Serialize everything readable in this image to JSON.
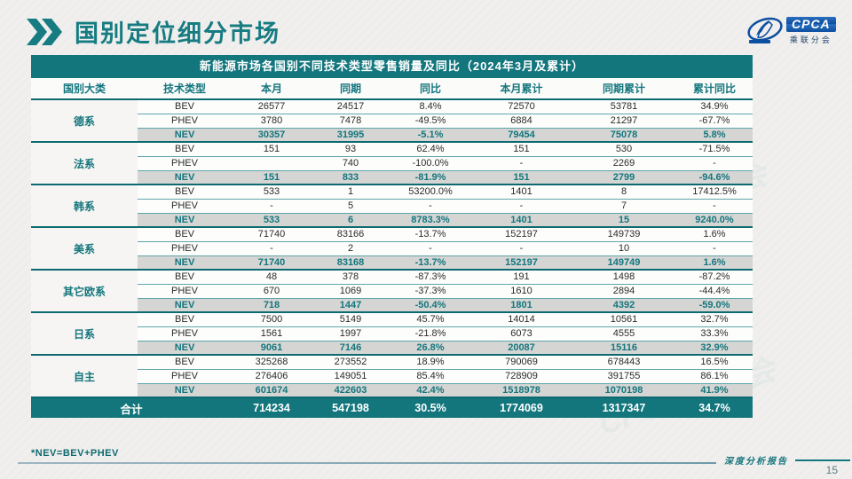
{
  "page": {
    "title": "国别定位细分市场",
    "page_number": "15",
    "footnote": "*NEV=BEV+PHEV",
    "footer_label": "深度分析报告"
  },
  "logo": {
    "name": "CPCA",
    "org": "乘联分会"
  },
  "watermark_text": "CPCA 乘联会",
  "table": {
    "caption": "新能源市场各国别不同技术类型零售销量及同比（2024年3月及累计）",
    "columns": [
      "国别大类",
      "技术类型",
      "本月",
      "同期",
      "同比",
      "本月累计",
      "同期累计",
      "累计同比"
    ],
    "groups": [
      {
        "name": "德系",
        "rows": [
          {
            "type": "BEV",
            "values": [
              "26577",
              "24517",
              "8.4%",
              "72570",
              "53781",
              "34.9%"
            ]
          },
          {
            "type": "PHEV",
            "values": [
              "3780",
              "7478",
              "-49.5%",
              "6884",
              "21297",
              "-67.7%"
            ]
          },
          {
            "type": "NEV",
            "values": [
              "30357",
              "31995",
              "-5.1%",
              "79454",
              "75078",
              "5.8%"
            ]
          }
        ]
      },
      {
        "name": "法系",
        "rows": [
          {
            "type": "BEV",
            "values": [
              "151",
              "93",
              "62.4%",
              "151",
              "530",
              "-71.5%"
            ]
          },
          {
            "type": "PHEV",
            "values": [
              "",
              "740",
              "-100.0%",
              "-",
              "2269",
              "-"
            ]
          },
          {
            "type": "NEV",
            "values": [
              "151",
              "833",
              "-81.9%",
              "151",
              "2799",
              "-94.6%"
            ]
          }
        ]
      },
      {
        "name": "韩系",
        "rows": [
          {
            "type": "BEV",
            "values": [
              "533",
              "1",
              "53200.0%",
              "1401",
              "8",
              "17412.5%"
            ]
          },
          {
            "type": "PHEV",
            "values": [
              "-",
              "5",
              "-",
              "-",
              "7",
              "-"
            ]
          },
          {
            "type": "NEV",
            "values": [
              "533",
              "6",
              "8783.3%",
              "1401",
              "15",
              "9240.0%"
            ]
          }
        ]
      },
      {
        "name": "美系",
        "rows": [
          {
            "type": "BEV",
            "values": [
              "71740",
              "83166",
              "-13.7%",
              "152197",
              "149739",
              "1.6%"
            ]
          },
          {
            "type": "PHEV",
            "values": [
              "-",
              "2",
              "-",
              "-",
              "10",
              "-"
            ]
          },
          {
            "type": "NEV",
            "values": [
              "71740",
              "83168",
              "-13.7%",
              "152197",
              "149749",
              "1.6%"
            ]
          }
        ]
      },
      {
        "name": "其它欧系",
        "rows": [
          {
            "type": "BEV",
            "values": [
              "48",
              "378",
              "-87.3%",
              "191",
              "1498",
              "-87.2%"
            ]
          },
          {
            "type": "PHEV",
            "values": [
              "670",
              "1069",
              "-37.3%",
              "1610",
              "2894",
              "-44.4%"
            ]
          },
          {
            "type": "NEV",
            "values": [
              "718",
              "1447",
              "-50.4%",
              "1801",
              "4392",
              "-59.0%"
            ]
          }
        ]
      },
      {
        "name": "日系",
        "rows": [
          {
            "type": "BEV",
            "values": [
              "7500",
              "5149",
              "45.7%",
              "14014",
              "10561",
              "32.7%"
            ]
          },
          {
            "type": "PHEV",
            "values": [
              "1561",
              "1997",
              "-21.8%",
              "6073",
              "4555",
              "33.3%"
            ]
          },
          {
            "type": "NEV",
            "values": [
              "9061",
              "7146",
              "26.8%",
              "20087",
              "15116",
              "32.9%"
            ]
          }
        ]
      },
      {
        "name": "自主",
        "rows": [
          {
            "type": "BEV",
            "values": [
              "325268",
              "273552",
              "18.9%",
              "790069",
              "678443",
              "16.5%"
            ]
          },
          {
            "type": "PHEV",
            "values": [
              "276406",
              "149051",
              "85.4%",
              "728909",
              "391755",
              "86.1%"
            ]
          },
          {
            "type": "NEV",
            "values": [
              "601674",
              "422603",
              "42.4%",
              "1518978",
              "1070198",
              "41.9%"
            ]
          }
        ]
      }
    ],
    "total": {
      "label": "合计",
      "values": [
        "714234",
        "547198",
        "30.5%",
        "1774069",
        "1317347",
        "34.7%"
      ]
    }
  },
  "colors": {
    "teal": "#13767d",
    "nev_row_bg": "#d5d5d4",
    "logo_blue": "#0d4fa0"
  }
}
